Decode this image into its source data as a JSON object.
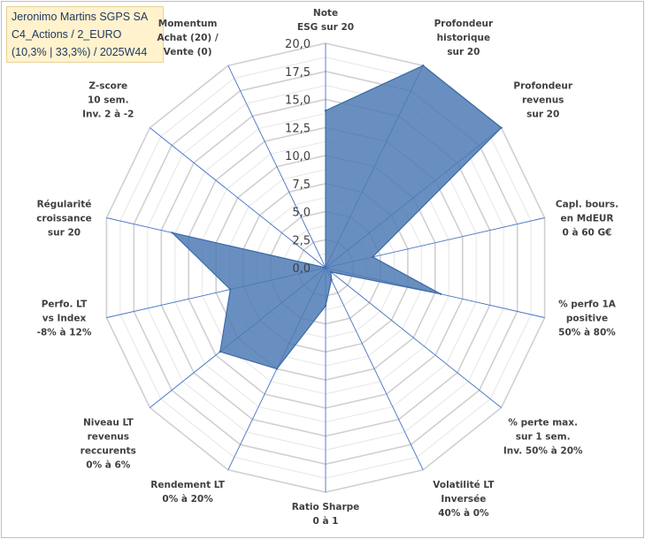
{
  "title": {
    "line1": "Jeronimo Martins SGPS SA",
    "line2": "C4_Actions / 2_EURO",
    "line3": "(10,3% | 33,3%) / 2025W44"
  },
  "colors": {
    "fill": "#4f7bb5",
    "stroke": "#3c6aa5",
    "grid": "#d9d9d9",
    "spoke": "#4472c4",
    "title_bg": "#fff2cc"
  },
  "chart_data": {
    "type": "radar",
    "range": [
      0,
      20
    ],
    "tick_step": 2.5,
    "tick_labels": [
      "0,0",
      "2,5",
      "5,0",
      "7,5",
      "10,0",
      "12,5",
      "15,0",
      "17,5",
      "20,0"
    ],
    "axes": [
      {
        "label": [
          "Note",
          "ESG sur 20"
        ],
        "value": 14
      },
      {
        "label": [
          "Profondeur",
          "historique",
          "sur 20"
        ],
        "value": 20
      },
      {
        "label": [
          "Profondeur",
          "revenus",
          "sur 20"
        ],
        "value": 20
      },
      {
        "label": [
          "Capl. bours.",
          "en MdEUR",
          "0 à 60 G€"
        ],
        "value": 4.3
      },
      {
        "label": [
          "% perfo 1A",
          "positive",
          "50% à 80%"
        ],
        "value": 10.5
      },
      {
        "label": [
          "% perte max.",
          "sur 1 sem.",
          "Inv. 50% à 20%"
        ],
        "value": 0.6
      },
      {
        "label": [
          "Volatilité LT",
          "Inversée",
          "40% à 0%"
        ],
        "value": 1.2
      },
      {
        "label": [
          "Ratio Sharpe",
          "0 à 1"
        ],
        "value": 3.4
      },
      {
        "label": [
          "Rendement LT",
          "0% à 20%"
        ],
        "value": 10
      },
      {
        "label": [
          "Niveau LT",
          "revenus",
          "reccurents",
          "0% à 6%"
        ],
        "value": 12
      },
      {
        "label": [
          "Perfo. LT",
          "vs Index",
          "-8% à 12%"
        ],
        "value": 8.7
      },
      {
        "label": [
          "Régularité",
          "croissance",
          "sur 20"
        ],
        "value": 14
      },
      {
        "label": [
          "Z-score",
          "10 sem.",
          "Inv. 2 à -2"
        ],
        "value": 0
      },
      {
        "label": [
          "Momentum",
          "Achat (20) /",
          "Vente (0)"
        ],
        "value": 0
      }
    ]
  }
}
